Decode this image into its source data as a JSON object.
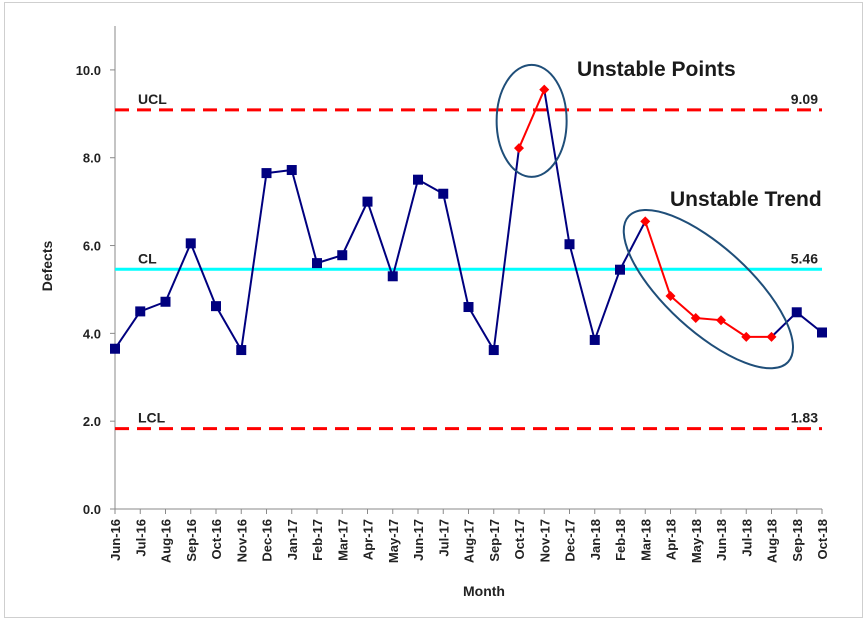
{
  "chart_data": {
    "type": "line",
    "title": "",
    "xlabel": "Month",
    "ylabel": "Defects",
    "ylim": [
      0,
      11
    ],
    "yticks": [
      "0.0",
      "2.0",
      "4.0",
      "6.0",
      "8.0",
      "10.0"
    ],
    "grid": false,
    "categories": [
      "Jun-16",
      "Jul-16",
      "Aug-16",
      "Sep-16",
      "Oct-16",
      "Nov-16",
      "Dec-16",
      "Jan-17",
      "Feb-17",
      "Mar-17",
      "Apr-17",
      "May-17",
      "Jun-17",
      "Jul-17",
      "Aug-17",
      "Sep-17",
      "Oct-17",
      "Nov-17",
      "Dec-17",
      "Jan-18",
      "Feb-18",
      "Mar-18",
      "Apr-18",
      "May-18",
      "Jun-18",
      "Jul-18",
      "Aug-18",
      "Sep-18",
      "Oct-18"
    ],
    "series": [
      {
        "values": [
          3.65,
          4.5,
          4.72,
          6.05,
          4.62,
          3.62,
          7.65,
          7.72,
          5.6,
          5.78,
          7.0,
          5.3,
          7.5,
          7.18,
          4.6,
          3.62,
          8.22,
          9.55,
          6.03,
          3.85,
          5.45,
          6.55,
          4.85,
          4.35,
          4.3,
          3.92,
          3.92,
          4.48,
          4.02
        ],
        "color": "#00007f",
        "highlight_color": "#ff0000",
        "highlight_indices": [
          16,
          17,
          21,
          22,
          23,
          24,
          25,
          26
        ]
      }
    ],
    "limits": [
      {
        "label": "UCL",
        "value": 9.09,
        "value_text": "9.09",
        "color": "#ff0000",
        "style": "dashed"
      },
      {
        "label": "CL",
        "value": 5.46,
        "value_text": "5.46",
        "color": "#00ffff",
        "style": "solid"
      },
      {
        "label": "LCL",
        "value": 1.83,
        "value_text": "1.83",
        "color": "#ff0000",
        "style": "dashed"
      }
    ],
    "annotations": [
      {
        "text": "Unstable Points",
        "indices": [
          16,
          17
        ]
      },
      {
        "text": "Unstable Trend",
        "indices": [
          21,
          22,
          23,
          24,
          25,
          26
        ]
      }
    ]
  }
}
